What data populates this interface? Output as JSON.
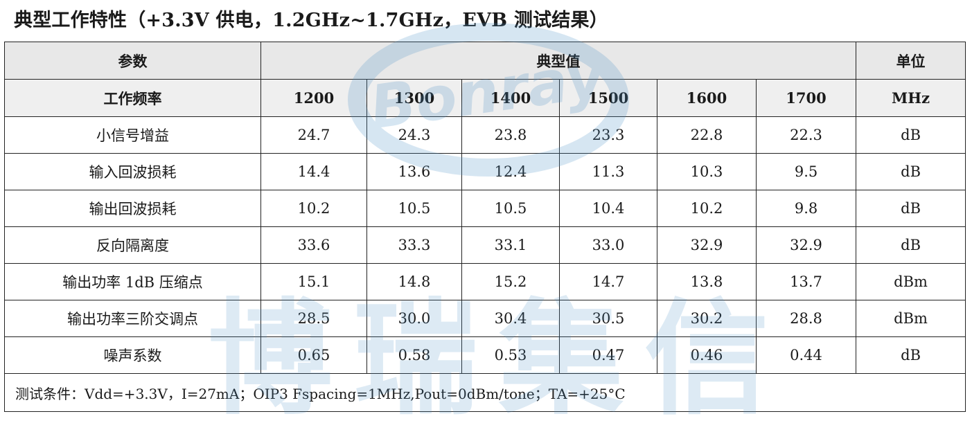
{
  "title": "典型工作特性（+3.3V 供电，1.2GHz~1.7GHz，EVB 测试结果）",
  "watermark": {
    "logo_text": "Bonray",
    "company_cn": "博瑞集信",
    "color": "#4a8fc6"
  },
  "table": {
    "header": {
      "param": "参数",
      "typical": "典型值",
      "unit": "单位"
    },
    "freq_row": {
      "label": "工作频率",
      "values": [
        "1200",
        "1300",
        "1400",
        "1500",
        "1600",
        "1700"
      ],
      "unit": "MHz"
    },
    "rows": [
      {
        "label": "小信号增益",
        "values": [
          "24.7",
          "24.3",
          "23.8",
          "23.3",
          "22.8",
          "22.3"
        ],
        "unit": "dB"
      },
      {
        "label": "输入回波损耗",
        "values": [
          "14.4",
          "13.6",
          "12.4",
          "11.3",
          "10.3",
          "9.5"
        ],
        "unit": "dB"
      },
      {
        "label": "输出回波损耗",
        "values": [
          "10.2",
          "10.5",
          "10.5",
          "10.4",
          "10.2",
          "9.8"
        ],
        "unit": "dB"
      },
      {
        "label": "反向隔离度",
        "values": [
          "33.6",
          "33.3",
          "33.1",
          "33.0",
          "32.9",
          "32.9"
        ],
        "unit": "dB"
      },
      {
        "label": "输出功率 1dB 压缩点",
        "values": [
          "15.1",
          "14.8",
          "15.2",
          "14.7",
          "13.8",
          "13.7"
        ],
        "unit": "dBm"
      },
      {
        "label": "输出功率三阶交调点",
        "values": [
          "28.5",
          "30.0",
          "30.4",
          "30.5",
          "30.2",
          "28.8"
        ],
        "unit": "dBm"
      },
      {
        "label": "噪声系数",
        "values": [
          "0.65",
          "0.58",
          "0.53",
          "0.47",
          "0.46",
          "0.44"
        ],
        "unit": "dB"
      }
    ],
    "note": "测试条件：Vdd=+3.3V，I=27mA；OIP3 Fspacing=1MHz,Pout=0dBm/tone；TA=+25°C"
  }
}
